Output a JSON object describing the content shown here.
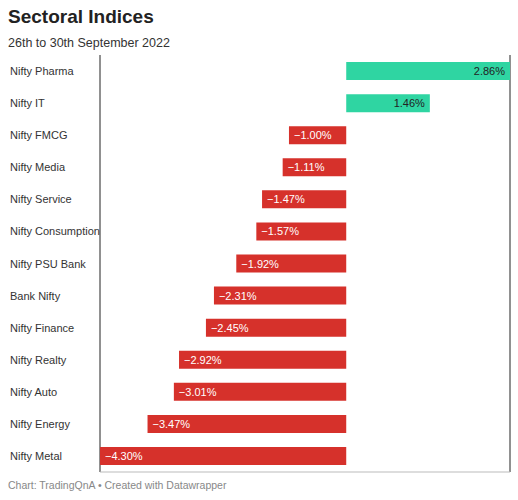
{
  "chart_data": {
    "type": "bar",
    "orientation": "horizontal",
    "title": "Sectoral Indices",
    "subtitle": "26th to 30th September 2022",
    "source": "Chart: TradingQnA • Created with Datawrapper",
    "categories": [
      "Nifty Pharma",
      "Nifty IT",
      "Nifty FMCG",
      "Nifty Media",
      "Nifty Service",
      "Nifty Consumption",
      "Nifty PSU Bank",
      "Bank Nifty",
      "Nifty Finance",
      "Nifty Realty",
      "Nifty Auto",
      "Nifty Energy",
      "Nifty Metal"
    ],
    "values": [
      2.86,
      1.46,
      -1.0,
      -1.11,
      -1.47,
      -1.57,
      -1.92,
      -2.31,
      -2.45,
      -2.92,
      -3.01,
      -3.47,
      -4.3
    ],
    "value_labels": [
      "2.86%",
      "1.46%",
      "−1.00%",
      "−1.11%",
      "−1.47%",
      "−1.57%",
      "−1.92%",
      "−2.31%",
      "−2.45%",
      "−2.92%",
      "−3.01%",
      "−3.47%",
      "−4.30%"
    ],
    "colors": [
      "#2fd5a2",
      "#2fd5a2",
      "#d6312b",
      "#d6312b",
      "#d6312b",
      "#d6312b",
      "#d6312b",
      "#d6312b",
      "#d6312b",
      "#d6312b",
      "#d6312b",
      "#d6312b",
      "#d6312b"
    ],
    "xlim": [
      -4.3,
      2.86
    ],
    "xticks": [
      0
    ],
    "grid": true,
    "data_labels": true,
    "tick_labels": "y"
  }
}
